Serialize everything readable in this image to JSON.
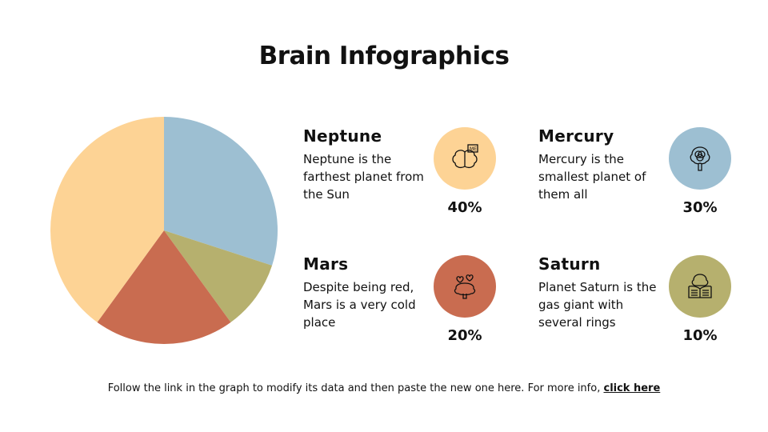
{
  "title": "Brain Infographics",
  "items": [
    {
      "name": "Neptune",
      "desc": "Neptune is the farthest planet from the Sun",
      "pct": "40%",
      "icon": "brain-me-icon",
      "color": "#FDD395"
    },
    {
      "name": "Mercury",
      "desc": "Mercury is the smallest planet of them all",
      "pct": "30%",
      "icon": "brain-tree-icon",
      "color": "#9DBFD2"
    },
    {
      "name": "Mars",
      "desc": "Despite being red, Mars is a very cold place",
      "pct": "20%",
      "icon": "brain-hearts-icon",
      "color": "#C96C50"
    },
    {
      "name": "Saturn",
      "desc": "Planet Saturn is the gas giant with several rings",
      "pct": "10%",
      "icon": "brain-book-icon",
      "color": "#B6B06E"
    }
  ],
  "footer": {
    "text": "Follow the link in the graph to modify its data and then paste the new one here. For more info,",
    "link": "click here"
  },
  "chart_data": {
    "type": "pie",
    "categories": [
      "Mercury",
      "Saturn",
      "Mars",
      "Neptune"
    ],
    "values": [
      30,
      10,
      20,
      40
    ],
    "colors": [
      "#9DBFD2",
      "#B6B06E",
      "#C96C50",
      "#FDD395"
    ],
    "start": "top",
    "direction": "clockwise"
  }
}
